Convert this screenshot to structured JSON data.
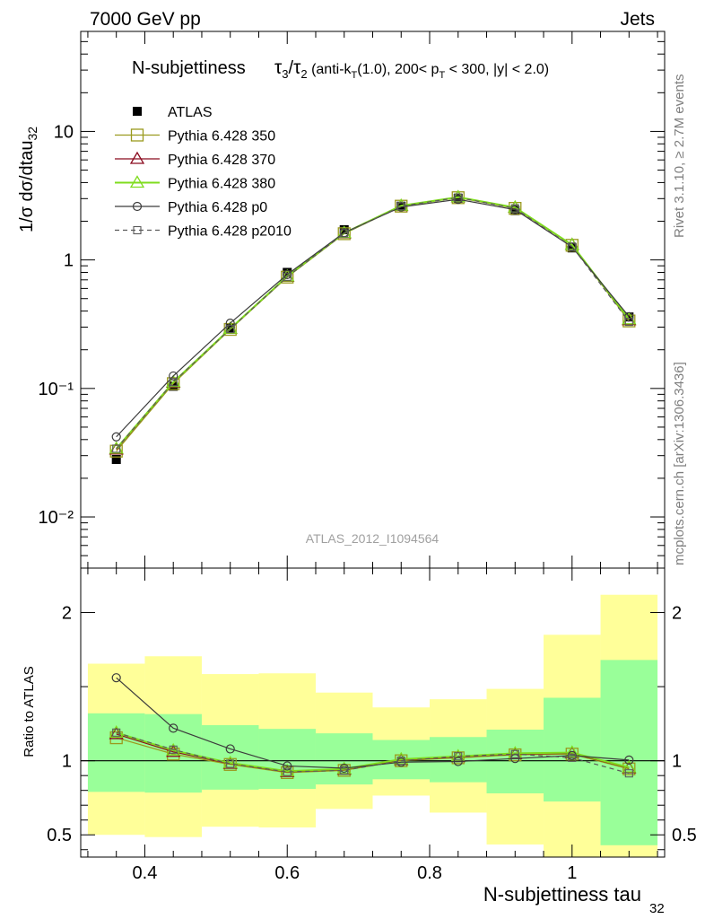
{
  "header": {
    "left": "7000 GeV pp",
    "right": "Jets"
  },
  "side_labels": {
    "rivet": "Rivet 3.1.10, ≥ 2.7M events",
    "mcplots": "mcplots.cern.ch [arXiv:1306.3436]"
  },
  "watermark": "ATLAS_2012_I1094564",
  "plot_title": {
    "main": "N-subjettiness",
    "formula": "τ₃/τ₂ (anti-k_T(1.0), 200< p_T < 300, |y| < 2.0)"
  },
  "legend": [
    {
      "label": "ATLAS",
      "color": "#000000",
      "marker": "filled-square",
      "dash": false
    },
    {
      "label": "Pythia 6.428 350",
      "color": "#9a9a1e",
      "marker": "open-square",
      "dash": false
    },
    {
      "label": "Pythia 6.428 370",
      "color": "#8b0a1e",
      "marker": "open-triangle",
      "dash": false
    },
    {
      "label": "Pythia 6.428 380",
      "color": "#7fdc1e",
      "marker": "open-triangle",
      "dash": false
    },
    {
      "label": "Pythia 6.428 p0",
      "color": "#3c3c3c",
      "marker": "open-circle",
      "dash": false
    },
    {
      "label": "Pythia 6.428 p2010",
      "color": "#5a5a5a",
      "marker": "open-square-small",
      "dash": true
    }
  ],
  "chart_data": [
    {
      "type": "line",
      "name": "main",
      "ylabel": "1/σ dσ/dtau_32",
      "yscale": "log",
      "ylim": [
        0.004,
        60
      ],
      "xlim": [
        0.31,
        1.13
      ],
      "x_ticks": [
        0.4,
        0.6,
        0.8,
        1.0
      ],
      "y_tick_labels": [
        "10⁻²",
        "10⁻¹",
        "1",
        "10"
      ],
      "x": [
        0.36,
        0.44,
        0.52,
        0.6,
        0.68,
        0.76,
        0.84,
        0.92,
        1.0,
        1.08
      ],
      "series": [
        {
          "name": "ATLAS",
          "values": [
            0.028,
            0.104,
            0.295,
            0.8,
            1.72,
            2.62,
            3.02,
            2.42,
            1.24,
            0.36
          ]
        },
        {
          "name": "Pythia 6.428 350",
          "values": [
            0.0325,
            0.109,
            0.288,
            0.735,
            1.6,
            2.62,
            3.05,
            2.52,
            1.3,
            0.335
          ]
        },
        {
          "name": "Pythia 6.428 370",
          "values": [
            0.0335,
            0.111,
            0.291,
            0.74,
            1.61,
            2.63,
            3.07,
            2.55,
            1.31,
            0.34
          ]
        },
        {
          "name": "Pythia 6.428 380",
          "values": [
            0.034,
            0.112,
            0.292,
            0.745,
            1.62,
            2.64,
            3.08,
            2.56,
            1.31,
            0.345
          ]
        },
        {
          "name": "Pythia 6.428 p0",
          "values": [
            0.042,
            0.125,
            0.322,
            0.77,
            1.63,
            2.58,
            2.96,
            2.46,
            1.26,
            0.362
          ]
        },
        {
          "name": "Pythia 6.428 p2010",
          "values": [
            0.034,
            0.112,
            0.29,
            0.74,
            1.61,
            2.62,
            3.06,
            2.52,
            1.27,
            0.33
          ]
        }
      ]
    },
    {
      "type": "line",
      "name": "ratio",
      "ylabel": "Ratio to ATLAS",
      "xlabel": "N-subjettiness tau",
      "xlabel_sub": "32",
      "ylim": [
        0.35,
        2.3
      ],
      "xlim": [
        0.31,
        1.13
      ],
      "x_ticks": [
        0.4,
        0.6,
        0.8,
        1.0
      ],
      "y_ticks": [
        0.5,
        1,
        2
      ],
      "y_tick_labels": [
        "0.5",
        "1",
        "2"
      ],
      "bin_edges": [
        0.32,
        0.4,
        0.48,
        0.56,
        0.64,
        0.72,
        0.8,
        0.88,
        0.96,
        1.04,
        1.12
      ],
      "band_stat": {
        "low": [
          0.79,
          0.785,
          0.805,
          0.81,
          0.84,
          0.875,
          0.855,
          0.78,
          0.725,
          0.43
        ],
        "high": [
          1.32,
          1.315,
          1.24,
          1.215,
          1.185,
          1.14,
          1.16,
          1.21,
          1.425,
          1.68
        ]
      },
      "band_total": {
        "low": [
          0.5,
          0.485,
          0.555,
          0.55,
          0.675,
          0.765,
          0.65,
          0.435,
          0.335,
          0.35
        ],
        "high": [
          1.655,
          1.705,
          1.585,
          1.59,
          1.46,
          1.36,
          1.415,
          1.485,
          1.85,
          2.12
        ]
      },
      "x": [
        0.36,
        0.44,
        0.52,
        0.6,
        0.68,
        0.76,
        0.84,
        0.92,
        1.0,
        1.08
      ],
      "series": [
        {
          "name": "Pythia 6.428 350",
          "values": [
            1.155,
            1.045,
            0.975,
            0.92,
            0.935,
            1.0,
            1.02,
            1.04,
            1.045,
            0.945
          ]
        },
        {
          "name": "Pythia 6.428 370",
          "values": [
            1.18,
            1.06,
            0.98,
            0.925,
            0.94,
            1.005,
            1.025,
            1.045,
            1.05,
            0.95
          ]
        },
        {
          "name": "Pythia 6.428 380",
          "values": [
            1.19,
            1.07,
            0.985,
            0.93,
            0.945,
            1.01,
            1.03,
            1.05,
            1.055,
            0.955
          ]
        },
        {
          "name": "Pythia 6.428 p0",
          "values": [
            1.56,
            1.22,
            1.08,
            0.965,
            0.95,
            0.99,
            0.995,
            1.015,
            1.035,
            1.005
          ]
        },
        {
          "name": "Pythia 6.428 p2010",
          "values": [
            1.19,
            1.075,
            0.98,
            0.925,
            0.935,
            1.0,
            1.03,
            1.045,
            1.02,
            0.915
          ]
        }
      ]
    }
  ]
}
